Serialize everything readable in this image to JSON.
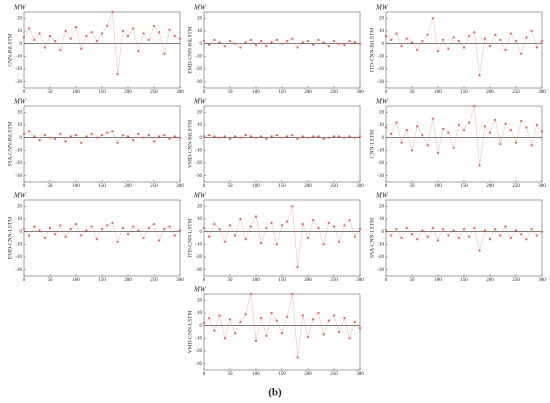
{
  "caption": "(b)",
  "chart_data": [
    {
      "type": "scatter",
      "y_label": "CNN-BiLSTM",
      "unit": "MW",
      "color": "#e8604c",
      "reference_line": 0,
      "xlim": [
        0,
        300
      ],
      "ylim": [
        -35,
        25
      ],
      "xticks": [
        0,
        50,
        100,
        150,
        200,
        250,
        300
      ],
      "yticks": [
        -30,
        -20,
        -10,
        0,
        10,
        20
      ],
      "x": [
        0,
        10,
        20,
        30,
        40,
        50,
        60,
        70,
        80,
        90,
        100,
        110,
        120,
        130,
        140,
        150,
        160,
        170,
        180,
        190,
        200,
        210,
        220,
        230,
        240,
        250,
        260,
        270,
        280,
        290,
        300
      ],
      "values": [
        5,
        12,
        3,
        8,
        -3,
        6,
        2,
        -5,
        10,
        4,
        13,
        -4,
        6,
        9,
        2,
        8,
        14,
        25,
        -24,
        10,
        6,
        12,
        -6,
        8,
        3,
        14,
        9,
        -8,
        11,
        6,
        4
      ]
    },
    {
      "type": "scatter",
      "y_label": "EMD-CNN-BiLSTM",
      "unit": "MW",
      "color": "#e8604c",
      "reference_line": 0,
      "xlim": [
        0,
        300
      ],
      "ylim": [
        -35,
        25
      ],
      "xticks": [
        0,
        50,
        100,
        150,
        200,
        250,
        300
      ],
      "yticks": [
        -30,
        -20,
        -10,
        0,
        10,
        20
      ],
      "x": [
        0,
        10,
        20,
        30,
        40,
        50,
        60,
        70,
        80,
        90,
        100,
        110,
        120,
        130,
        140,
        150,
        160,
        170,
        180,
        190,
        200,
        210,
        220,
        230,
        240,
        250,
        260,
        270,
        280,
        290,
        300
      ],
      "values": [
        2,
        -1,
        3,
        1,
        -2,
        2,
        0,
        -3,
        1,
        3,
        -1,
        2,
        -2,
        1,
        3,
        0,
        2,
        4,
        -3,
        1,
        2,
        -1,
        3,
        1,
        -2,
        2,
        0,
        -1,
        2,
        1,
        0
      ]
    },
    {
      "type": "scatter",
      "y_label": "ITD-CNN-BiLSTM",
      "unit": "MW",
      "color": "#e8604c",
      "reference_line": 0,
      "xlim": [
        0,
        300
      ],
      "ylim": [
        -35,
        25
      ],
      "xticks": [
        0,
        50,
        100,
        150,
        200,
        250,
        300
      ],
      "yticks": [
        -30,
        -20,
        -10,
        0,
        10,
        20
      ],
      "x": [
        0,
        10,
        20,
        30,
        40,
        50,
        60,
        70,
        80,
        90,
        100,
        110,
        120,
        130,
        140,
        150,
        160,
        170,
        180,
        190,
        200,
        210,
        220,
        230,
        240,
        250,
        260,
        270,
        280,
        290,
        300
      ],
      "values": [
        6,
        3,
        8,
        -2,
        4,
        1,
        -5,
        2,
        7,
        20,
        -6,
        3,
        -4,
        5,
        2,
        -3,
        6,
        9,
        -25,
        4,
        -2,
        7,
        3,
        -5,
        8,
        2,
        -8,
        5,
        10,
        -3,
        2
      ]
    },
    {
      "type": "scatter",
      "y_label": "SSA-CNN-BiLSTM",
      "unit": "MW",
      "color": "#e8604c",
      "reference_line": 0,
      "xlim": [
        0,
        300
      ],
      "ylim": [
        -35,
        25
      ],
      "xticks": [
        0,
        50,
        100,
        150,
        200,
        250,
        300
      ],
      "yticks": [
        -30,
        -20,
        -10,
        0,
        10,
        20
      ],
      "x": [
        0,
        10,
        20,
        30,
        40,
        50,
        60,
        70,
        80,
        90,
        100,
        110,
        120,
        130,
        140,
        150,
        160,
        170,
        180,
        190,
        200,
        210,
        220,
        230,
        240,
        250,
        260,
        270,
        280,
        290,
        300
      ],
      "values": [
        3,
        5,
        1,
        -2,
        2,
        0,
        -1,
        3,
        -3,
        1,
        2,
        -4,
        1,
        3,
        0,
        2,
        4,
        5,
        -4,
        2,
        1,
        -2,
        3,
        0,
        2,
        -3,
        1,
        2,
        -1,
        1,
        0
      ]
    },
    {
      "type": "scatter",
      "y_label": "VMD-CNN-BiLSTM",
      "unit": "MW",
      "color": "#e8604c",
      "reference_line": 0,
      "xlim": [
        0,
        300
      ],
      "ylim": [
        -35,
        25
      ],
      "xticks": [
        0,
        50,
        100,
        150,
        200,
        250,
        300
      ],
      "yticks": [
        -30,
        -20,
        -10,
        0,
        10,
        20
      ],
      "x": [
        0,
        10,
        20,
        30,
        40,
        50,
        60,
        70,
        80,
        90,
        100,
        110,
        120,
        130,
        140,
        150,
        160,
        170,
        180,
        190,
        200,
        210,
        220,
        230,
        240,
        250,
        260,
        270,
        280,
        290,
        300
      ],
      "values": [
        1,
        2,
        1,
        0,
        1,
        -1,
        1,
        0,
        2,
        1,
        0,
        1,
        -1,
        1,
        2,
        0,
        1,
        2,
        -1,
        1,
        0,
        1,
        1,
        -1,
        0,
        1,
        1,
        0,
        1,
        0,
        1
      ]
    },
    {
      "type": "scatter",
      "y_label": "CNN-LSTM",
      "unit": "MW",
      "color": "#e8604c",
      "reference_line": 0,
      "xlim": [
        0,
        300
      ],
      "ylim": [
        -35,
        25
      ],
      "xticks": [
        0,
        50,
        100,
        150,
        200,
        250,
        300
      ],
      "yticks": [
        -30,
        -20,
        -10,
        0,
        10,
        20
      ],
      "x": [
        0,
        10,
        20,
        30,
        40,
        50,
        60,
        70,
        80,
        90,
        100,
        110,
        120,
        130,
        140,
        150,
        160,
        170,
        180,
        190,
        200,
        210,
        220,
        230,
        240,
        250,
        260,
        270,
        280,
        290,
        300
      ],
      "values": [
        8,
        3,
        12,
        -4,
        6,
        -10,
        9,
        2,
        -6,
        15,
        -12,
        7,
        4,
        -8,
        10,
        6,
        12,
        25,
        -22,
        9,
        4,
        14,
        -5,
        11,
        6,
        -4,
        13,
        8,
        -6,
        10,
        5
      ]
    },
    {
      "type": "scatter",
      "y_label": "EMD-CNN-LSTM",
      "unit": "MW",
      "color": "#e8604c",
      "reference_line": 0,
      "xlim": [
        0,
        300
      ],
      "ylim": [
        -35,
        25
      ],
      "xticks": [
        0,
        50,
        100,
        150,
        200,
        250,
        300
      ],
      "yticks": [
        -30,
        -20,
        -10,
        0,
        10,
        20
      ],
      "x": [
        0,
        10,
        20,
        30,
        40,
        50,
        60,
        70,
        80,
        90,
        100,
        110,
        120,
        130,
        140,
        150,
        160,
        170,
        180,
        190,
        200,
        210,
        220,
        230,
        240,
        250,
        260,
        270,
        280,
        290,
        300
      ],
      "values": [
        2,
        -3,
        4,
        1,
        -5,
        3,
        -2,
        5,
        -4,
        2,
        6,
        -3,
        1,
        4,
        -6,
        2,
        5,
        7,
        -8,
        3,
        -2,
        4,
        1,
        -5,
        3,
        6,
        -7,
        2,
        4,
        -3,
        1
      ]
    },
    {
      "type": "scatter",
      "y_label": "ITD-CNN-LSTM",
      "unit": "MW",
      "color": "#e8604c",
      "reference_line": 0,
      "xlim": [
        0,
        300
      ],
      "ylim": [
        -35,
        25
      ],
      "xticks": [
        0,
        50,
        100,
        150,
        200,
        250,
        300
      ],
      "yticks": [
        -30,
        -20,
        -10,
        0,
        10,
        20
      ],
      "x": [
        0,
        10,
        20,
        30,
        40,
        50,
        60,
        70,
        80,
        90,
        100,
        110,
        120,
        130,
        140,
        150,
        160,
        170,
        180,
        190,
        200,
        210,
        220,
        230,
        240,
        250,
        260,
        270,
        280,
        290,
        300
      ],
      "values": [
        3,
        -4,
        6,
        2,
        -8,
        5,
        -3,
        10,
        -6,
        4,
        12,
        -9,
        3,
        7,
        -10,
        5,
        8,
        20,
        -28,
        6,
        -5,
        9,
        3,
        -10,
        7,
        4,
        -8,
        5,
        9,
        -4,
        2
      ]
    },
    {
      "type": "scatter",
      "y_label": "SSA-CNN-LSTM",
      "unit": "MW",
      "color": "#e8604c",
      "reference_line": 0,
      "xlim": [
        0,
        300
      ],
      "ylim": [
        -35,
        25
      ],
      "xticks": [
        0,
        50,
        100,
        150,
        200,
        250,
        300
      ],
      "yticks": [
        -30,
        -20,
        -10,
        0,
        10,
        20
      ],
      "x": [
        0,
        10,
        20,
        30,
        40,
        50,
        60,
        70,
        80,
        90,
        100,
        110,
        120,
        130,
        140,
        150,
        160,
        170,
        180,
        190,
        200,
        210,
        220,
        230,
        240,
        250,
        260,
        270,
        280,
        290,
        300
      ],
      "values": [
        1,
        -3,
        2,
        -5,
        3,
        -2,
        -6,
        1,
        -4,
        3,
        -7,
        2,
        -3,
        1,
        -5,
        2,
        -4,
        3,
        -15,
        1,
        -6,
        2,
        -3,
        4,
        -5,
        1,
        -2,
        -6,
        2,
        -3,
        0
      ]
    },
    {
      "type": "scatter",
      "y_label": "VMD-CNN-LSTM",
      "unit": "MW",
      "color": "#e8604c",
      "reference_line": 0,
      "xlim": [
        0,
        300
      ],
      "ylim": [
        -35,
        25
      ],
      "xticks": [
        0,
        50,
        100,
        150,
        200,
        250,
        300
      ],
      "yticks": [
        -30,
        -20,
        -10,
        0,
        10,
        20
      ],
      "x": [
        0,
        10,
        20,
        30,
        40,
        50,
        60,
        70,
        80,
        90,
        100,
        110,
        120,
        130,
        140,
        150,
        160,
        170,
        180,
        190,
        200,
        210,
        220,
        230,
        240,
        250,
        260,
        270,
        280,
        290,
        300
      ],
      "values": [
        2,
        6,
        -4,
        8,
        -10,
        5,
        -6,
        3,
        9,
        25,
        -12,
        6,
        -8,
        10,
        4,
        -6,
        7,
        25,
        -25,
        8,
        -9,
        5,
        10,
        -7,
        4,
        8,
        -5,
        6,
        -10,
        3,
        -2
      ]
    }
  ]
}
